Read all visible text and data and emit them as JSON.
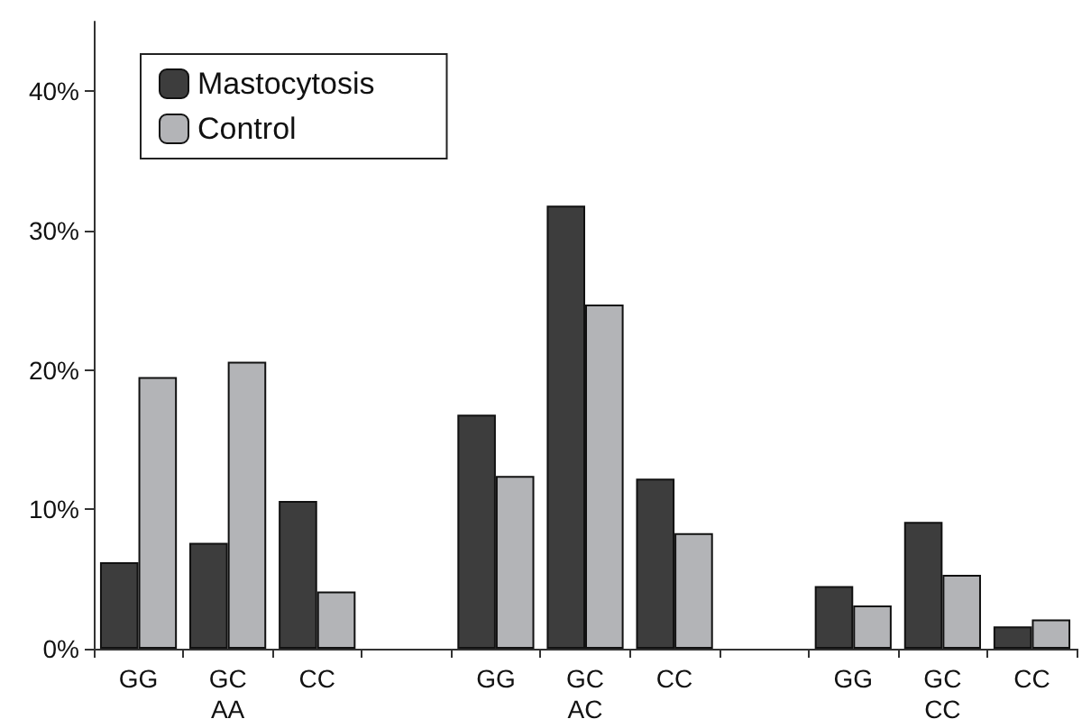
{
  "chart_data": {
    "type": "bar",
    "categories": [
      "GG",
      "GC\nAA",
      "CC",
      null,
      "GG",
      "GC\nAC",
      "CC",
      null,
      "GG",
      "GC\nCC",
      "CC"
    ],
    "series": [
      {
        "name": "Mastocytosis",
        "color": "#3d3d3d",
        "values": [
          6.2,
          7.6,
          10.6,
          null,
          16.8,
          31.8,
          12.2,
          null,
          4.5,
          9.1,
          1.6
        ]
      },
      {
        "name": "Control",
        "color": "#b3b4b7",
        "values": [
          19.5,
          20.6,
          4.1,
          null,
          12.4,
          24.7,
          8.3,
          null,
          3.1,
          5.3,
          2.1
        ]
      }
    ],
    "ylim": [
      0,
      45
    ],
    "yticks": [
      {
        "value": 0,
        "label": "0%"
      },
      {
        "value": 10,
        "label": "10%"
      },
      {
        "value": 20,
        "label": "20%"
      },
      {
        "value": 30,
        "label": "30%"
      },
      {
        "value": 40,
        "label": "40%"
      }
    ],
    "grid": false,
    "legend": "top left"
  }
}
